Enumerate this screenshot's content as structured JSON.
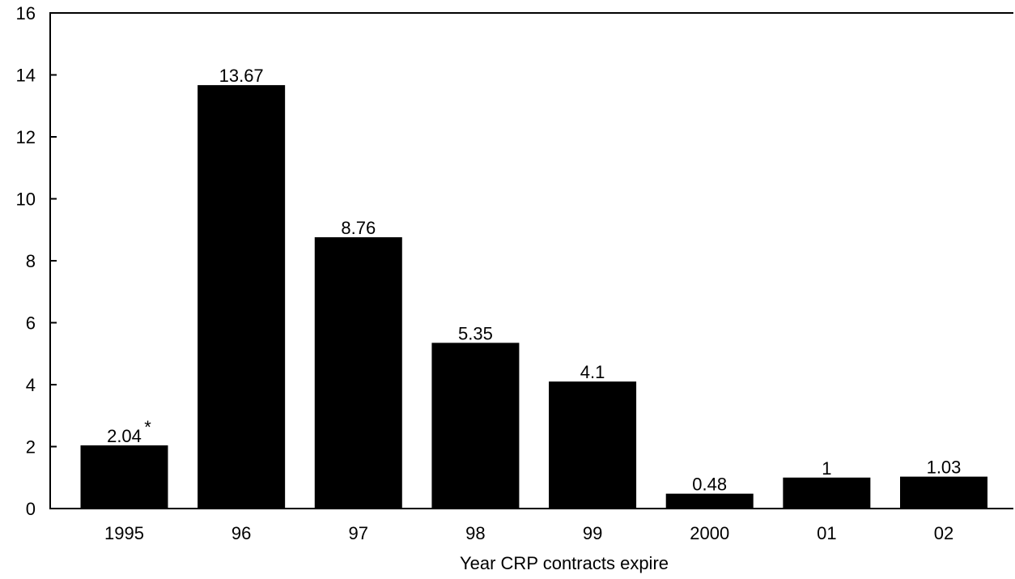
{
  "chart_data": {
    "type": "bar",
    "categories": [
      "1995",
      "96",
      "97",
      "98",
      "99",
      "2000",
      "01",
      "02"
    ],
    "values": [
      2.04,
      13.67,
      8.76,
      5.35,
      4.1,
      0.48,
      1,
      1.03
    ],
    "value_labels": [
      "2.04",
      "13.67",
      "8.76",
      "5.35",
      "4.1",
      "0.48",
      "1",
      "1.03"
    ],
    "annotations": [
      {
        "category": "1995",
        "text": "*"
      }
    ],
    "title": "",
    "xlabel": "Year CRP contracts expire",
    "ylabel": "",
    "ylim": [
      0,
      16
    ],
    "yticks": [
      0,
      2,
      4,
      6,
      8,
      10,
      12,
      14,
      16
    ],
    "grid": false,
    "legend": "none",
    "bar_color": "#000000"
  }
}
